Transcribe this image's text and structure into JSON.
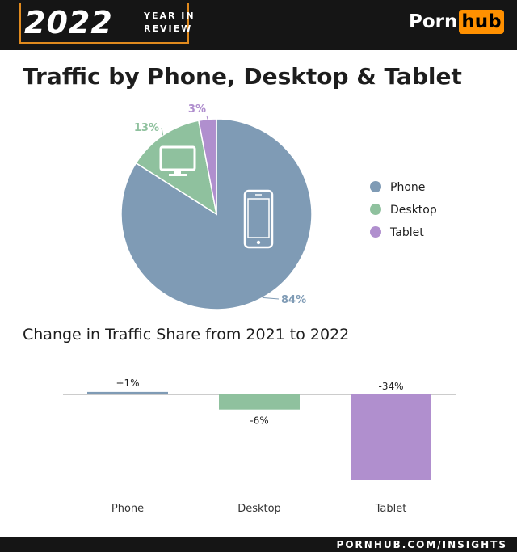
{
  "header": {
    "year": "2022",
    "year_line1": "YEAR IN",
    "year_line2": "REVIEW",
    "brand_part1": "Porn",
    "brand_part2": "hub"
  },
  "footer": {
    "url": "PORNHUB.COM/INSIGHTS"
  },
  "colors": {
    "phone": "#7f9bb5",
    "desktop": "#8fc19e",
    "tablet": "#b08fce",
    "accent": "#ff9000"
  },
  "chart_data": [
    {
      "type": "pie",
      "title": "Traffic by Phone, Desktop & Tablet",
      "legend_position": "right",
      "slices": [
        {
          "name": "Phone",
          "value": 84,
          "label": "84%",
          "icon": "phone-icon"
        },
        {
          "name": "Desktop",
          "value": 13,
          "label": "13%",
          "icon": "monitor-icon"
        },
        {
          "name": "Tablet",
          "value": 3,
          "label": "3%"
        }
      ]
    },
    {
      "type": "bar",
      "title": "Change in Traffic Share from 2021 to 2022",
      "categories": [
        "Phone",
        "Desktop",
        "Tablet"
      ],
      "values": [
        1,
        -6,
        -34
      ],
      "value_labels": [
        "+1%",
        "-6%",
        "-34%"
      ],
      "ylim": [
        -35,
        2
      ]
    }
  ]
}
